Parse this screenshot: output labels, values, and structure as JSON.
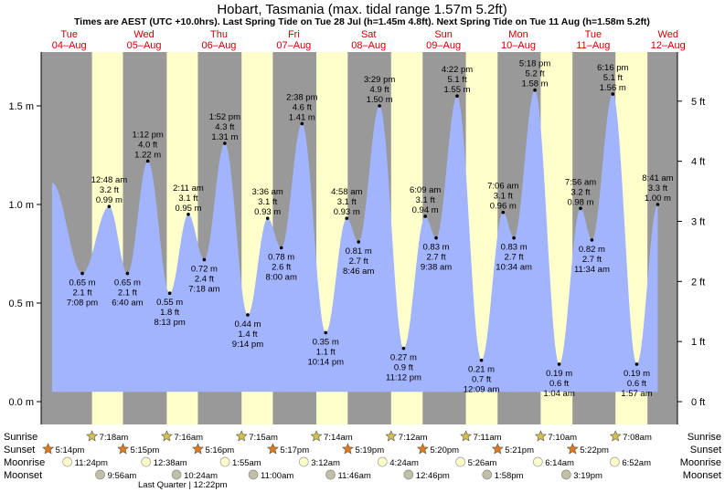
{
  "chart_data": {
    "type": "area",
    "title": "Hobart, Tasmania (max. tidal range 1.57m 5.2ft)",
    "subtitle": "Times are AEST (UTC +10.0hrs). Last Spring Tide on Tue 28 Jul (h=1.45m 4.8ft). Next Spring Tide on Tue 11 Aug (h=1.58m 5.2ft)",
    "ylim_m": [
      -0.05,
      1.75
    ],
    "xlim_hours": [
      -9,
      195
    ],
    "colors": {
      "day": "#ffffcc",
      "night": "#999999",
      "water": "#a3b4ff",
      "day_label": "#cc0000",
      "sun_star": "#e0a400",
      "moon_disc": "#ffffcc",
      "moonset_disc": "#c0c0a8"
    },
    "y_ticks_m": [
      {
        "v": 0.0,
        "label": "0.0 m"
      },
      {
        "v": 0.5,
        "label": "0.5 m"
      },
      {
        "v": 1.0,
        "label": "1.0 m"
      },
      {
        "v": 1.5,
        "label": "1.5 m"
      }
    ],
    "y_ticks_ft": [
      {
        "v": 0,
        "label": "0 ft"
      },
      {
        "v": 1,
        "label": "1 ft"
      },
      {
        "v": 2,
        "label": "2 ft"
      },
      {
        "v": 3,
        "label": "3 ft"
      },
      {
        "v": 4,
        "label": "4 ft"
      },
      {
        "v": 5,
        "label": "5 ft"
      }
    ],
    "days": [
      {
        "name": "Tue",
        "date": "04–Aug",
        "t": 0
      },
      {
        "name": "Wed",
        "date": "05–Aug",
        "t": 24
      },
      {
        "name": "Thu",
        "date": "06–Aug",
        "t": 48
      },
      {
        "name": "Fri",
        "date": "07–Aug",
        "t": 72
      },
      {
        "name": "Sat",
        "date": "08–Aug",
        "t": 96
      },
      {
        "name": "Sun",
        "date": "09–Aug",
        "t": 120
      },
      {
        "name": "Mon",
        "date": "10–Aug",
        "t": 144
      },
      {
        "name": "Tue",
        "date": "11–Aug",
        "t": 168
      },
      {
        "name": "Wed",
        "date": "12–Aug",
        "t": 192
      }
    ],
    "nights": [
      {
        "start": -9,
        "end": 7.3
      },
      {
        "start": 17.23,
        "end": 31.27
      },
      {
        "start": 41.25,
        "end": 55.25
      },
      {
        "start": 65.27,
        "end": 79.23
      },
      {
        "start": 89.28,
        "end": 103.2
      },
      {
        "start": 113.3,
        "end": 127.17
      },
      {
        "start": 137.33,
        "end": 151.15
      },
      {
        "start": 161.35,
        "end": 175.12
      },
      {
        "start": 185.37,
        "end": 195
      }
    ],
    "tides": [
      {
        "t": -5.5,
        "h": 1.11
      },
      {
        "t": 4.2,
        "h": 0.65,
        "time": "",
        "ft": "2.1 ft",
        "m": "0.65 m",
        "time_below": "7:08 pm"
      },
      {
        "t": 12.8,
        "h": 0.99,
        "time": "12:48 am",
        "ft": "3.2 ft",
        "m": "0.99 m"
      },
      {
        "t": 18.67,
        "h": 0.65,
        "ft": "2.1 ft",
        "m": "0.65 m",
        "time": "6:40 am"
      },
      {
        "t": 25.2,
        "h": 1.22,
        "time": "1:12 pm",
        "ft": "4.0 ft",
        "m": "1.22 m"
      },
      {
        "t": 32.22,
        "h": 0.55,
        "ft": "1.8 ft",
        "m": "0.55 m",
        "time": "8:13 pm"
      },
      {
        "t": 38.18,
        "h": 0.95,
        "time": "2:11 am",
        "ft": "3.1 ft",
        "m": "0.95 m"
      },
      {
        "t": 43.3,
        "h": 0.72,
        "ft": "2.4 ft",
        "m": "0.72 m",
        "time": "7:18 am"
      },
      {
        "t": 49.87,
        "h": 1.31,
        "time": "1:52 pm",
        "ft": "4.3 ft",
        "m": "1.31 m"
      },
      {
        "t": 57.23,
        "h": 0.44,
        "ft": "1.4 ft",
        "m": "0.44 m",
        "time": "9:14 pm"
      },
      {
        "t": 63.6,
        "h": 0.93,
        "time": "3:36 am",
        "ft": "3.1 ft",
        "m": "0.93 m"
      },
      {
        "t": 68.0,
        "h": 0.78,
        "ft": "2.6 ft",
        "m": "0.78 m",
        "time": "8:00 am"
      },
      {
        "t": 74.63,
        "h": 1.41,
        "time": "2:38 pm",
        "ft": "4.6 ft",
        "m": "1.41 m"
      },
      {
        "t": 82.23,
        "h": 0.35,
        "ft": "1.1 ft",
        "m": "0.35 m",
        "time": "10:14 pm"
      },
      {
        "t": 88.97,
        "h": 0.93,
        "time": "4:58 am",
        "ft": "3.1 ft",
        "m": "0.93 m"
      },
      {
        "t": 92.77,
        "h": 0.81,
        "ft": "2.7 ft",
        "m": "0.81 m",
        "time": "8:46 am"
      },
      {
        "t": 99.48,
        "h": 1.5,
        "time": "3:29 pm",
        "ft": "4.9 ft",
        "m": "1.50 m"
      },
      {
        "t": 107.2,
        "h": 0.27,
        "ft": "0.9 ft",
        "m": "0.27 m",
        "time": "11:12 pm"
      },
      {
        "t": 114.15,
        "h": 0.94,
        "time": "6:09 am",
        "ft": "3.1 ft",
        "m": "0.94 m"
      },
      {
        "t": 117.63,
        "h": 0.83,
        "ft": "2.7 ft",
        "m": "0.83 m",
        "time": "9:38 am"
      },
      {
        "t": 124.37,
        "h": 1.55,
        "time": "4:22 pm",
        "ft": "5.1 ft",
        "m": "1.55 m"
      },
      {
        "t": 132.15,
        "h": 0.21,
        "ft": "0.7 ft",
        "m": "0.21 m",
        "time": "12:09 am"
      },
      {
        "t": 139.1,
        "h": 0.96,
        "time": "7:06 am",
        "ft": "3.1 ft",
        "m": "0.96 m"
      },
      {
        "t": 142.57,
        "h": 0.83,
        "ft": "2.7 ft",
        "m": "0.83 m",
        "time": "10:34 am"
      },
      {
        "t": 149.3,
        "h": 1.58,
        "time": "5:18 pm",
        "ft": "5.2 ft",
        "m": "1.58 m"
      },
      {
        "t": 157.07,
        "h": 0.19,
        "ft": "0.6 ft",
        "m": "0.19 m",
        "time": "1:04 am"
      },
      {
        "t": 163.93,
        "h": 0.98,
        "time": "7:56 am",
        "ft": "3.2 ft",
        "m": "0.98 m"
      },
      {
        "t": 167.57,
        "h": 0.82,
        "ft": "2.7 ft",
        "m": "0.82 m",
        "time": "11:34 am"
      },
      {
        "t": 174.27,
        "h": 1.56,
        "time": "6:16 pm",
        "ft": "5.1 ft",
        "m": "1.56 m"
      },
      {
        "t": 181.95,
        "h": 0.19,
        "ft": "0.6 ft",
        "m": "0.19 m",
        "time": "1:57 am"
      },
      {
        "t": 188.68,
        "h": 1.0,
        "time": "8:41 am",
        "ft": "3.3 ft",
        "m": "1.00 m"
      }
    ],
    "row_labels": [
      "Sunrise",
      "Sunset",
      "Moonrise",
      "Moonset"
    ],
    "sunrise": [
      {
        "t": 7.3,
        "label": "7:18am"
      },
      {
        "t": 31.27,
        "label": "7:16am"
      },
      {
        "t": 55.25,
        "label": "7:15am"
      },
      {
        "t": 79.23,
        "label": "7:14am"
      },
      {
        "t": 103.2,
        "label": "7:12am"
      },
      {
        "t": 127.17,
        "label": "7:11am"
      },
      {
        "t": 151.15,
        "label": "7:10am"
      },
      {
        "t": 175.12,
        "label": "7:08am"
      }
    ],
    "sunset": [
      {
        "t": -6.77,
        "label": "5:14pm"
      },
      {
        "t": 17.25,
        "label": "5:15pm"
      },
      {
        "t": 41.27,
        "label": "5:16pm"
      },
      {
        "t": 65.28,
        "label": "5:17pm"
      },
      {
        "t": 89.32,
        "label": "5:19pm"
      },
      {
        "t": 113.33,
        "label": "5:20pm"
      },
      {
        "t": 137.35,
        "label": "5:21pm"
      },
      {
        "t": 161.37,
        "label": "5:22pm"
      }
    ],
    "moonrise": [
      {
        "t": -0.6,
        "label": "11:24pm"
      },
      {
        "t": 24.63,
        "label": "12:38am"
      },
      {
        "t": 49.92,
        "label": "1:55am"
      },
      {
        "t": 75.2,
        "label": "3:12am"
      },
      {
        "t": 100.4,
        "label": "4:24am"
      },
      {
        "t": 125.43,
        "label": "5:26am"
      },
      {
        "t": 150.23,
        "label": "6:14am"
      },
      {
        "t": 174.87,
        "label": "6:52am"
      }
    ],
    "moonset": [
      {
        "t": 9.93,
        "label": "9:56am"
      },
      {
        "t": 34.4,
        "label": "10:24am"
      },
      {
        "t": 59.0,
        "label": "11:00am"
      },
      {
        "t": 83.77,
        "label": "11:46am"
      },
      {
        "t": 108.77,
        "label": "12:46pm"
      },
      {
        "t": 133.97,
        "label": "1:58pm"
      },
      {
        "t": 159.32,
        "label": "3:19pm"
      }
    ],
    "moon_phase": {
      "t": 36.37,
      "label": "Last Quarter | 12:22pm"
    }
  }
}
